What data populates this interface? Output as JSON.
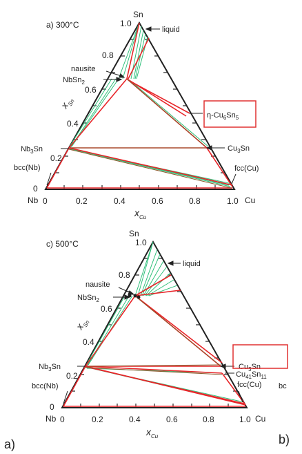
{
  "panels": [
    {
      "title": "a) 300°C",
      "corners": {
        "top": "Sn",
        "left": "Nb",
        "right": "Cu"
      },
      "ticks": {
        "bottom": [
          "0",
          "0.2",
          "0.4",
          "0.6",
          "0.8",
          "1.0"
        ],
        "left": [
          "0",
          "0.2",
          "0.4",
          "0.6",
          "0.8",
          "1.0"
        ]
      },
      "axis_labels": {
        "x": "x",
        "x_sub": "Cu",
        "y": "x",
        "y_sub": "Sn"
      },
      "phases": {
        "liquid": "liquid",
        "nausite": "nausite",
        "nbsn2": "NbSn",
        "nbsn2_sub": "2",
        "nb3sn": "Nb",
        "nb3sn_sub": "3",
        "nb3sn_tail": "Sn",
        "bccnb": "bcc(Nb)",
        "cu3sn": "Cu",
        "cu3sn_sub": "3",
        "cu3sn_tail": "Sn",
        "fcccu": "fcc(Cu)",
        "eta_a": "η-Cu",
        "eta_sub1": "6",
        "eta_b": "Sn",
        "eta_sub2": "5"
      }
    },
    {
      "title": "c) 500°C",
      "corners": {
        "top": "Sn",
        "left": "Nb",
        "right": "Cu"
      },
      "ticks": {
        "bottom": [
          "0",
          "0.2",
          "0.4",
          "0.6",
          "0.8",
          "1.0"
        ],
        "left": [
          "0",
          "0.2",
          "0.4",
          "0.6",
          "0.8",
          "1.0"
        ]
      },
      "axis_labels": {
        "x": "x",
        "x_sub": "Cu",
        "y": "x",
        "y_sub": "Sn"
      },
      "phases": {
        "liquid": "liquid",
        "nausite": "nausite",
        "nbsn2": "NbSn",
        "nbsn2_sub": "2",
        "nb3sn": "Nb",
        "nb3sn_sub": "3",
        "nb3sn_tail": "Sn",
        "bccnb": "bcc(Nb)",
        "cu3sn": "Cu",
        "cu3sn_sub": "3",
        "cu3sn_tail": "Sn",
        "cu41sn11": "Cu",
        "cu41sn11_sub": "41",
        "cu41sn11_tail": "Sn",
        "cu41sn11_sub2": "11",
        "fcccu": "fcc(Cu)",
        "bc_cut": "bc"
      }
    }
  ],
  "labels": {
    "left": "a)",
    "right": "b)"
  },
  "colors": {
    "frame": "#222222",
    "red": "#e8262a",
    "green": "#2fbf7a",
    "brown": "#8a5a2b",
    "box": "#e03030"
  }
}
